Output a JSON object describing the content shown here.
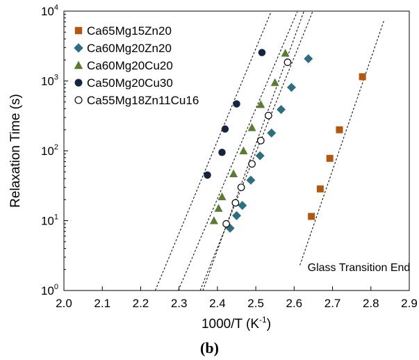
{
  "chart_data": {
    "type": "scatter",
    "title": "",
    "xlabel": "1000/T",
    "xlabel_unit_base": "K",
    "xlabel_unit_exp": "-1",
    "ylabel": "Relaxation Time (s)",
    "xlim": [
      2.0,
      2.9
    ],
    "ylim": [
      1,
      10000
    ],
    "yscale": "log",
    "x_ticks": [
      {
        "value": 2.0,
        "label": "2.0"
      },
      {
        "value": 2.1,
        "label": "2.1"
      },
      {
        "value": 2.2,
        "label": "2.2"
      },
      {
        "value": 2.3,
        "label": "2.3"
      },
      {
        "value": 2.4,
        "label": "2.4"
      },
      {
        "value": 2.5,
        "label": "2.5"
      },
      {
        "value": 2.6,
        "label": "2.6"
      },
      {
        "value": 2.7,
        "label": "2.7"
      },
      {
        "value": 2.8,
        "label": "2.8"
      },
      {
        "value": 2.9,
        "label": "2.9"
      }
    ],
    "y_ticks": [
      {
        "value": 1,
        "base": "10",
        "exp": "0"
      },
      {
        "value": 10,
        "base": "10",
        "exp": "1"
      },
      {
        "value": 100,
        "base": "10",
        "exp": "2"
      },
      {
        "value": 1000,
        "base": "10",
        "exp": "3"
      },
      {
        "value": 10000,
        "base": "10",
        "exp": "4"
      }
    ],
    "grid": false,
    "legend_position": "top-left",
    "series": [
      {
        "name": "Ca65Mg15Zn20",
        "marker": "square",
        "color": "#b3560f",
        "x": [
          2.645,
          2.668,
          2.693,
          2.718,
          2.778
        ],
        "y": [
          11.5,
          28.5,
          78,
          200,
          1150
        ],
        "fit": {
          "x": [
            2.615,
            2.835
          ],
          "y": [
            2.3,
            7600
          ]
        }
      },
      {
        "name": "Ca60Mg20Zn20",
        "marker": "diamond",
        "color": "#2e6f7f",
        "x": [
          2.433,
          2.45,
          2.465,
          2.487,
          2.511,
          2.541,
          2.566,
          2.593,
          2.637
        ],
        "y": [
          7.8,
          11.8,
          16.5,
          38,
          85,
          180,
          390,
          810,
          2080
        ],
        "fit": {
          "x": [
            2.355,
            2.648
          ],
          "y": [
            1,
            9800
          ]
        }
      },
      {
        "name": "Ca60Mg20Cu20",
        "marker": "triangle",
        "color": "#5b7a32",
        "x": [
          2.391,
          2.403,
          2.412,
          2.442,
          2.468,
          2.49,
          2.513,
          2.55,
          2.577
        ],
        "y": [
          10,
          15,
          22,
          47,
          100,
          215,
          460,
          950,
          2500
        ],
        "fit": {
          "x": [
            2.298,
            2.608
          ],
          "y": [
            1,
            9800
          ]
        }
      },
      {
        "name": "Ca50Mg20Cu30",
        "marker": "circle-filled",
        "color": "#14263f",
        "x": [
          2.374,
          2.412,
          2.42,
          2.45,
          2.516
        ],
        "y": [
          45,
          95,
          205,
          470,
          2550
        ],
        "fit": {
          "x": [
            2.238,
            2.54
          ],
          "y": [
            1,
            9800
          ]
        }
      },
      {
        "name": "Ca55Mg18Zn11Cu16",
        "marker": "circle-open",
        "color": "#000000",
        "x": [
          2.423,
          2.447,
          2.462,
          2.49,
          2.513,
          2.533,
          2.583
        ],
        "y": [
          9,
          18,
          30,
          65,
          140,
          320,
          1850
        ],
        "fit": {
          "x": [
            2.362,
            2.625
          ],
          "y": [
            1,
            9800
          ]
        }
      }
    ],
    "annotations": [
      {
        "text": "Glass Transition End",
        "x": 2.635,
        "y": 1.9
      }
    ]
  },
  "caption": "(b)"
}
